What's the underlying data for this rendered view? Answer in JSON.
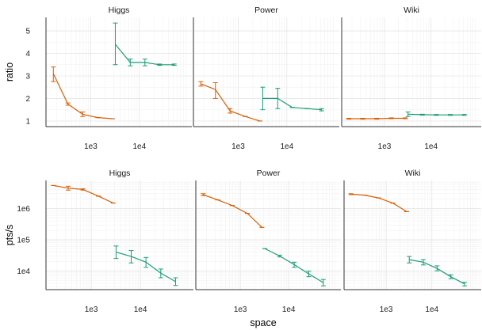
{
  "x_axis_label": "space",
  "colors": {
    "orange": "#d95f02",
    "green": "#1b9e77"
  },
  "chart_data": [
    {
      "type": "line",
      "title": "Higgs",
      "ylabel": "ratio",
      "yscale": "linear",
      "xscale": "log",
      "xlim": [
        120,
        120000
      ],
      "ylim": [
        0.75,
        5.6
      ],
      "xticks": [
        {
          "value": 1000,
          "label": "1e3"
        },
        {
          "value": 10000,
          "label": "1e4"
        }
      ],
      "yticks": [
        {
          "value": 1,
          "label": "1"
        },
        {
          "value": 2,
          "label": "2"
        },
        {
          "value": 3,
          "label": "3"
        },
        {
          "value": 4,
          "label": "4"
        },
        {
          "value": 5,
          "label": "5"
        }
      ],
      "series": [
        {
          "color": "#d95f02",
          "points": [
            {
              "x": 170,
              "y": 3.1,
              "lo": 2.75,
              "hi": 3.4
            },
            {
              "x": 340,
              "y": 1.75,
              "lo": 1.7,
              "hi": 1.8
            },
            {
              "x": 680,
              "y": 1.3,
              "lo": 1.2,
              "hi": 1.4
            },
            {
              "x": 1400,
              "y": 1.15,
              "lo": 1.15,
              "hi": 1.15
            },
            {
              "x": 2800,
              "y": 1.1,
              "lo": 1.1,
              "hi": 1.1
            }
          ]
        },
        {
          "color": "#1b9e77",
          "points": [
            {
              "x": 3200,
              "y": 4.4,
              "lo": 3.5,
              "hi": 5.35
            },
            {
              "x": 6500,
              "y": 3.6,
              "lo": 3.45,
              "hi": 3.75
            },
            {
              "x": 13000,
              "y": 3.6,
              "lo": 3.45,
              "hi": 3.75
            },
            {
              "x": 26000,
              "y": 3.5,
              "lo": 3.47,
              "hi": 3.53
            },
            {
              "x": 52000,
              "y": 3.5,
              "lo": 3.47,
              "hi": 3.53
            }
          ]
        }
      ]
    },
    {
      "type": "line",
      "title": "Power",
      "ylabel": "",
      "yscale": "linear",
      "xscale": "log",
      "xlim": [
        120,
        120000
      ],
      "ylim": [
        0.75,
        5.6
      ],
      "xticks": [
        {
          "value": 1000,
          "label": "1e3"
        },
        {
          "value": 10000,
          "label": "1e4"
        }
      ],
      "yticks": [],
      "series": [
        {
          "color": "#d95f02",
          "points": [
            {
              "x": 170,
              "y": 2.65,
              "lo": 2.55,
              "hi": 2.75
            },
            {
              "x": 340,
              "y": 2.4,
              "lo": 2.0,
              "hi": 2.7
            },
            {
              "x": 680,
              "y": 1.45,
              "lo": 1.35,
              "hi": 1.55
            },
            {
              "x": 1400,
              "y": 1.2,
              "lo": 1.2,
              "hi": 1.2
            },
            {
              "x": 2800,
              "y": 1.0,
              "lo": 1.0,
              "hi": 1.0
            }
          ]
        },
        {
          "color": "#1b9e77",
          "points": [
            {
              "x": 3200,
              "y": 2.0,
              "lo": 1.5,
              "hi": 2.5
            },
            {
              "x": 6500,
              "y": 2.0,
              "lo": 1.55,
              "hi": 2.45
            },
            {
              "x": 13000,
              "y": 1.6,
              "lo": 1.6,
              "hi": 1.6
            },
            {
              "x": 26000,
              "y": 1.55,
              "lo": 1.55,
              "hi": 1.55
            },
            {
              "x": 52000,
              "y": 1.5,
              "lo": 1.45,
              "hi": 1.55
            }
          ]
        }
      ]
    },
    {
      "type": "line",
      "title": "Wiki",
      "ylabel": "",
      "yscale": "linear",
      "xscale": "log",
      "xlim": [
        120,
        120000
      ],
      "ylim": [
        0.75,
        5.6
      ],
      "xticks": [
        {
          "value": 1000,
          "label": "1e3"
        },
        {
          "value": 10000,
          "label": "1e4"
        }
      ],
      "yticks": [],
      "series": [
        {
          "color": "#d95f02",
          "points": [
            {
              "x": 170,
              "y": 1.1,
              "lo": 1.08,
              "hi": 1.12
            },
            {
              "x": 340,
              "y": 1.1,
              "lo": 1.08,
              "hi": 1.12
            },
            {
              "x": 680,
              "y": 1.1,
              "lo": 1.08,
              "hi": 1.12
            },
            {
              "x": 1400,
              "y": 1.12,
              "lo": 1.1,
              "hi": 1.14
            },
            {
              "x": 2800,
              "y": 1.12,
              "lo": 1.1,
              "hi": 1.14
            }
          ]
        },
        {
          "color": "#1b9e77",
          "points": [
            {
              "x": 3200,
              "y": 1.3,
              "lo": 1.2,
              "hi": 1.4
            },
            {
              "x": 6500,
              "y": 1.28,
              "lo": 1.26,
              "hi": 1.3
            },
            {
              "x": 13000,
              "y": 1.27,
              "lo": 1.25,
              "hi": 1.29
            },
            {
              "x": 26000,
              "y": 1.27,
              "lo": 1.25,
              "hi": 1.29
            },
            {
              "x": 52000,
              "y": 1.27,
              "lo": 1.25,
              "hi": 1.29
            }
          ]
        }
      ]
    },
    {
      "type": "line",
      "title": "Higgs",
      "ylabel": "pts/s",
      "yscale": "log",
      "xscale": "log",
      "xlim": [
        120,
        120000
      ],
      "ylim": [
        2500,
        8000000
      ],
      "xticks": [
        {
          "value": 1000,
          "label": "1e3"
        },
        {
          "value": 10000,
          "label": "1e4"
        }
      ],
      "yticks": [
        {
          "value": 10000,
          "label": "1e4"
        },
        {
          "value": 100000,
          "label": "1e5"
        },
        {
          "value": 1000000,
          "label": "1e6"
        }
      ],
      "series": [
        {
          "color": "#d95f02",
          "points": [
            {
              "x": 170,
              "y": 5500000,
              "lo": 5500000,
              "hi": 5500000
            },
            {
              "x": 340,
              "y": 4500000,
              "lo": 3900000,
              "hi": 5200000
            },
            {
              "x": 680,
              "y": 4100000,
              "lo": 3900000,
              "hi": 4300000
            },
            {
              "x": 1400,
              "y": 2500000,
              "lo": 2500000,
              "hi": 2500000
            },
            {
              "x": 2800,
              "y": 1500000,
              "lo": 1500000,
              "hi": 1500000
            }
          ]
        },
        {
          "color": "#1b9e77",
          "points": [
            {
              "x": 3200,
              "y": 40000,
              "lo": 25000,
              "hi": 63000
            },
            {
              "x": 6500,
              "y": 29000,
              "lo": 18000,
              "hi": 45000
            },
            {
              "x": 13000,
              "y": 19000,
              "lo": 13000,
              "hi": 27000
            },
            {
              "x": 26000,
              "y": 8500,
              "lo": 6000,
              "hi": 11500
            },
            {
              "x": 52000,
              "y": 4500,
              "lo": 3400,
              "hi": 6000
            }
          ]
        }
      ]
    },
    {
      "type": "line",
      "title": "Power",
      "ylabel": "",
      "yscale": "log",
      "xscale": "log",
      "xlim": [
        120,
        120000
      ],
      "ylim": [
        2500,
        8000000
      ],
      "xticks": [
        {
          "value": 1000,
          "label": "1e3"
        },
        {
          "value": 10000,
          "label": "1e4"
        }
      ],
      "yticks": [],
      "series": [
        {
          "color": "#d95f02",
          "points": [
            {
              "x": 170,
              "y": 2800000,
              "lo": 2600000,
              "hi": 3000000
            },
            {
              "x": 340,
              "y": 1900000,
              "lo": 1900000,
              "hi": 1900000
            },
            {
              "x": 680,
              "y": 1250000,
              "lo": 1250000,
              "hi": 1250000
            },
            {
              "x": 1400,
              "y": 700000,
              "lo": 700000,
              "hi": 700000
            },
            {
              "x": 2800,
              "y": 250000,
              "lo": 250000,
              "hi": 250000
            }
          ]
        },
        {
          "color": "#1b9e77",
          "points": [
            {
              "x": 3200,
              "y": 52000,
              "lo": 52000,
              "hi": 52000
            },
            {
              "x": 6500,
              "y": 30000,
              "lo": 28000,
              "hi": 32000
            },
            {
              "x": 13000,
              "y": 16000,
              "lo": 13000,
              "hi": 19000
            },
            {
              "x": 26000,
              "y": 8000,
              "lo": 6500,
              "hi": 9800
            },
            {
              "x": 52000,
              "y": 4200,
              "lo": 3300,
              "hi": 5300
            }
          ]
        }
      ]
    },
    {
      "type": "line",
      "title": "Wiki",
      "ylabel": "",
      "yscale": "log",
      "xscale": "log",
      "xlim": [
        120,
        120000
      ],
      "ylim": [
        2500,
        8000000
      ],
      "xticks": [
        {
          "value": 1000,
          "label": "1e3"
        },
        {
          "value": 10000,
          "label": "1e4"
        }
      ],
      "yticks": [],
      "series": [
        {
          "color": "#d95f02",
          "points": [
            {
              "x": 170,
              "y": 2900000,
              "lo": 2800000,
              "hi": 3000000
            },
            {
              "x": 340,
              "y": 2700000,
              "lo": 2700000,
              "hi": 2700000
            },
            {
              "x": 680,
              "y": 2200000,
              "lo": 2200000,
              "hi": 2200000
            },
            {
              "x": 1400,
              "y": 1500000,
              "lo": 1500000,
              "hi": 1500000
            },
            {
              "x": 2800,
              "y": 800000,
              "lo": 800000,
              "hi": 800000
            }
          ]
        },
        {
          "color": "#1b9e77",
          "points": [
            {
              "x": 3200,
              "y": 23000,
              "lo": 18000,
              "hi": 29000
            },
            {
              "x": 6500,
              "y": 19000,
              "lo": 15500,
              "hi": 23000
            },
            {
              "x": 13000,
              "y": 12000,
              "lo": 10000,
              "hi": 14500
            },
            {
              "x": 26000,
              "y": 6500,
              "lo": 5600,
              "hi": 7500
            },
            {
              "x": 52000,
              "y": 3800,
              "lo": 3300,
              "hi": 4300
            }
          ]
        }
      ]
    }
  ]
}
